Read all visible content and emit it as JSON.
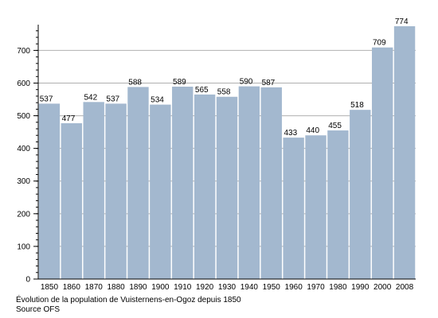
{
  "caption": {
    "line1": "Évolution de la population de Vuisternens-en-Ogoz depuis 1850",
    "line2": "Source OFS"
  },
  "colors": {
    "bar": "#a3b8cf",
    "grid": "#b0b0b0",
    "axis": "#000000"
  },
  "chart_data": {
    "type": "bar",
    "title": "",
    "xlabel": "",
    "ylabel": "",
    "categories": [
      "1850",
      "1860",
      "1870",
      "1880",
      "1890",
      "1900",
      "1910",
      "1920",
      "1930",
      "1940",
      "1950",
      "1960",
      "1970",
      "1980",
      "1990",
      "2000",
      "2008"
    ],
    "values": [
      537,
      477,
      542,
      537,
      588,
      534,
      589,
      565,
      558,
      590,
      587,
      433,
      440,
      455,
      518,
      709,
      774
    ],
    "ylim": [
      0,
      774
    ],
    "yticks": [
      0,
      100,
      200,
      300,
      400,
      500,
      600,
      700
    ],
    "minor_tick_step": 20,
    "grid": true,
    "data_labels": true,
    "legend": "none"
  }
}
